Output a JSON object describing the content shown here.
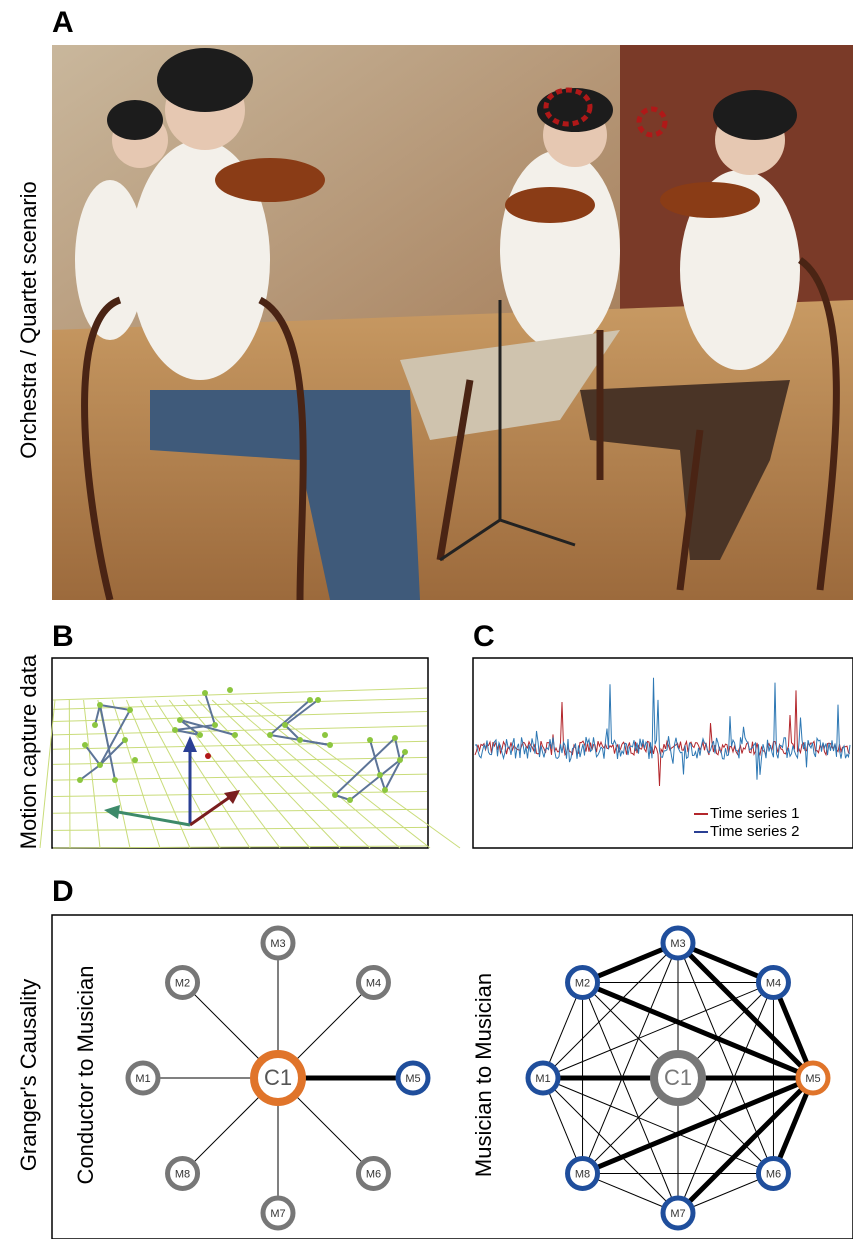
{
  "panels": {
    "a": {
      "letter": "A",
      "label": "Orchestra / Quartet scenario"
    },
    "b": {
      "letter": "B",
      "label": "Motion capture data"
    },
    "c": {
      "letter": "C",
      "legend": [
        "Time series 1",
        "Time series 2"
      ]
    },
    "d": {
      "letter": "D",
      "label": "Granger's Causality",
      "left": {
        "title": "Conductor to Musician",
        "center": "C1",
        "nodes": [
          "M1",
          "M2",
          "M3",
          "M4",
          "M5",
          "M6",
          "M7",
          "M8"
        ]
      },
      "right": {
        "title": "Musician to Musician",
        "center": "C1",
        "nodes": [
          "M1",
          "M2",
          "M3",
          "M4",
          "M5",
          "M6",
          "M7",
          "M8"
        ]
      }
    }
  }
}
